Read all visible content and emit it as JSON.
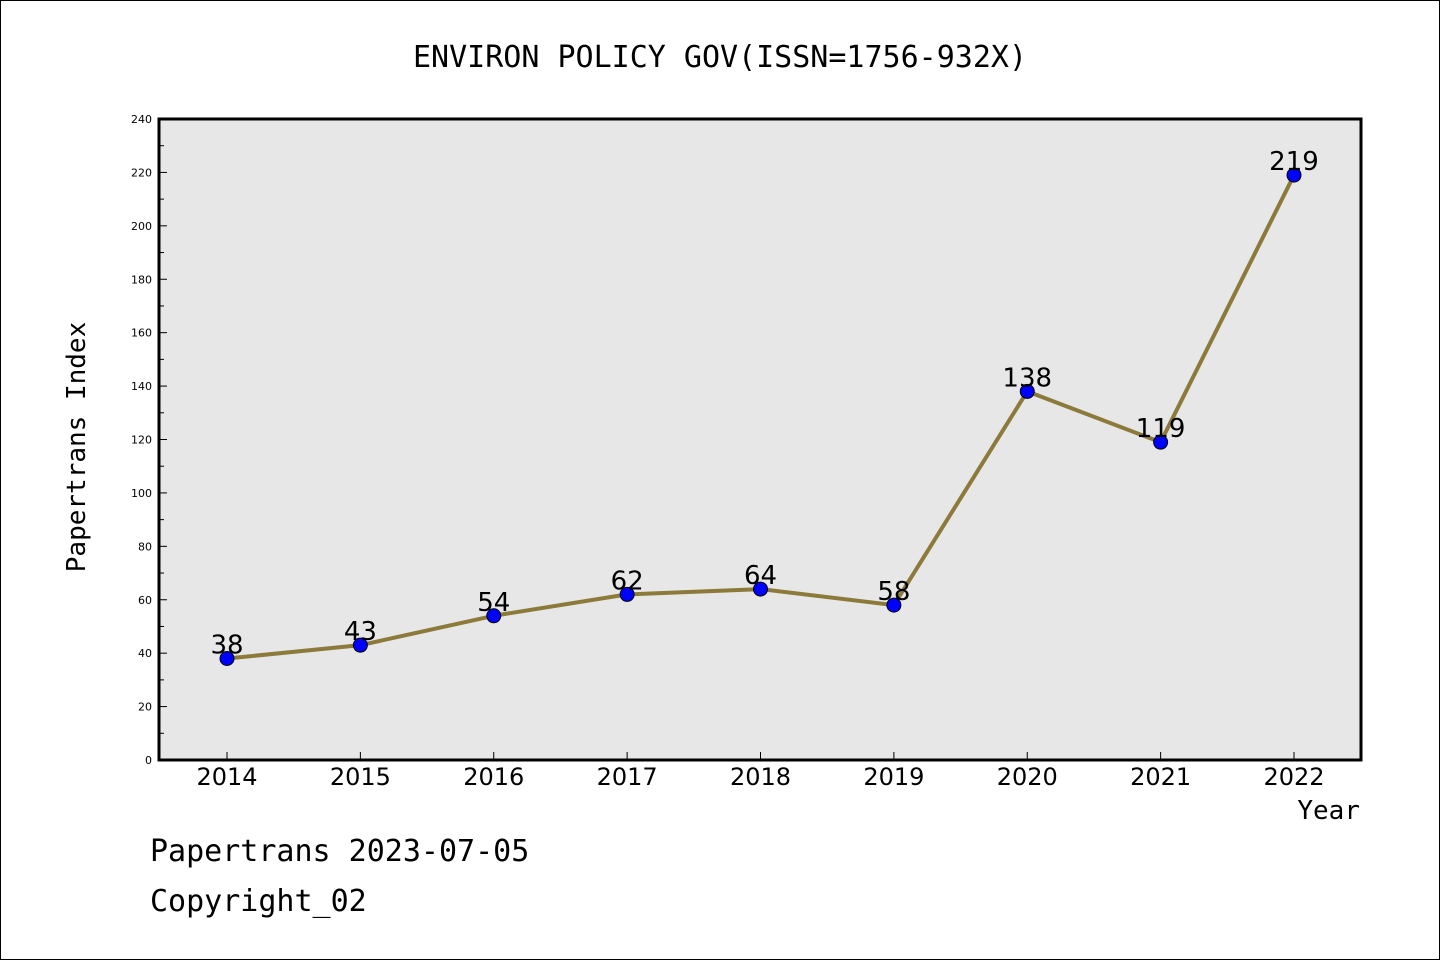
{
  "chart_data": {
    "type": "line",
    "title": "ENVIRON POLICY GOV(ISSN=1756-932X)",
    "xlabel": "Year",
    "ylabel": "Papertrans Index",
    "x": [
      "2014",
      "2015",
      "2016",
      "2017",
      "2018",
      "2019",
      "2020",
      "2021",
      "2022"
    ],
    "series": [
      {
        "values": [
          38,
          43,
          54,
          62,
          64,
          58,
          138,
          119,
          219
        ]
      }
    ],
    "ylim": [
      0,
      240
    ],
    "yticks": [
      0,
      20,
      40,
      60,
      80,
      100,
      120,
      140,
      160,
      180,
      200,
      220,
      240
    ],
    "grid": false,
    "colors": {
      "line": "#8b7a3a",
      "marker": "#0000ff",
      "plot_bg": "#e7e7e7",
      "axes": "#000000"
    }
  },
  "footer": {
    "line1": "Papertrans 2023-07-05",
    "line2": "Copyright_02"
  }
}
